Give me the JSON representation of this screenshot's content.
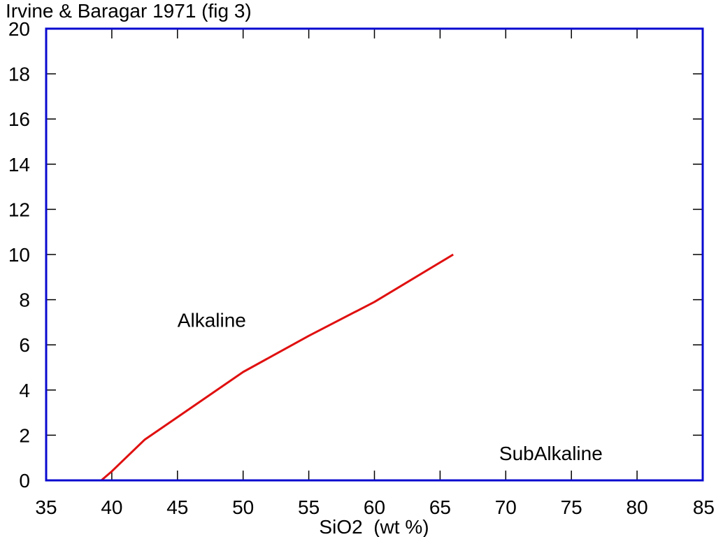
{
  "chart_data": {
    "type": "line",
    "title": "Irvine & Baragar 1971 (fig 3)",
    "xlabel": "SiO2  (wt %)",
    "ylabel": "",
    "xlim": [
      35,
      85
    ],
    "ylim": [
      0,
      20
    ],
    "xticks": [
      35,
      40,
      45,
      50,
      55,
      60,
      65,
      70,
      75,
      80,
      85
    ],
    "yticks": [
      0,
      2,
      4,
      6,
      8,
      10,
      12,
      14,
      16,
      18,
      20
    ],
    "grid": false,
    "series": [
      {
        "x": [
          39.2,
          40.0,
          42.5,
          45.0,
          50.0,
          55.0,
          60.0,
          66.0
        ],
        "y": [
          0.0,
          0.4,
          1.8,
          2.8,
          4.8,
          6.4,
          7.9,
          10.0
        ],
        "color": "#e01010"
      }
    ],
    "annotations": [
      {
        "text": "Alkaline",
        "x": 45.0,
        "y": 7.1
      },
      {
        "text": "SubAlkaline",
        "x": 69.5,
        "y": 1.2
      }
    ],
    "frame_color": "#0a0ad0",
    "axis_text_color": "#000000"
  }
}
